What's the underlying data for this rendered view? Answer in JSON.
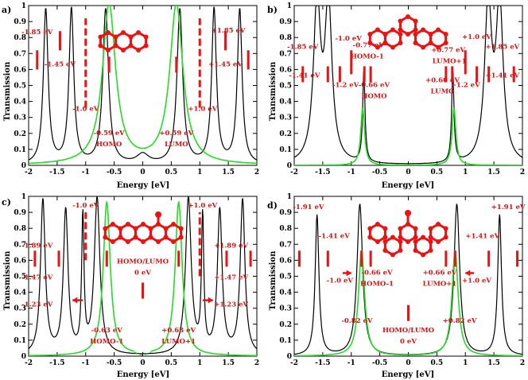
{
  "chart_data": [
    {
      "type": "line",
      "panel_label": "a)",
      "xlabel": "Energy [eV]",
      "ylabel": "Transmission",
      "xlim": [
        -2,
        2
      ],
      "ylim": [
        0,
        1
      ],
      "xticks": [
        "-2",
        "-1.5",
        "-1",
        "-0.5",
        "0",
        "0.5",
        "1",
        "1.5",
        "2"
      ],
      "yticks": [
        "0",
        "0.1",
        "0.2",
        "0.3",
        "0.4",
        "0.5",
        "0.6",
        "0.7",
        "0.8",
        "0.9",
        "1"
      ],
      "molecule": "linear-3-ring",
      "series": [
        {
          "name": "black",
          "color": "#000000",
          "peaks": [
            [
              -1.7,
              0.97,
              0.1
            ],
            [
              -1.25,
              0.97,
              0.1
            ],
            [
              -0.65,
              0.97,
              0.12
            ],
            [
              0.65,
              0.97,
              0.12
            ],
            [
              1.25,
              0.97,
              0.1
            ],
            [
              1.7,
              0.97,
              0.1
            ]
          ],
          "base": [
            [
              0,
              0.06,
              0.25
            ]
          ]
        },
        {
          "name": "green",
          "color": "#22dd22",
          "peaks": [
            [
              -0.59,
              1.0,
              0.28
            ],
            [
              0.59,
              1.0,
              0.28
            ]
          ]
        }
      ],
      "annotations": [
        {
          "text": "-1.85 eV",
          "x": -1.85,
          "y": 0.82
        },
        {
          "text": "-1.45 eV",
          "x": -1.45,
          "y": 0.62
        },
        {
          "text": "-1.0 eV",
          "x": -1.0,
          "y": 0.34
        },
        {
          "text": "-0.59 eV",
          "x": -0.59,
          "y": 0.19
        },
        {
          "text": "HOMO",
          "x": -0.59,
          "y": 0.12
        },
        {
          "text": "+0.59 eV",
          "x": 0.59,
          "y": 0.19
        },
        {
          "text": "LUMO",
          "x": 0.59,
          "y": 0.12
        },
        {
          "text": "+1.0 eV",
          "x": 1.05,
          "y": 0.34
        },
        {
          "text": "+1.45 eV",
          "x": 1.45,
          "y": 0.62
        },
        {
          "text": "+1.85 eV",
          "x": 1.5,
          "y": 0.83
        }
      ],
      "markers": [
        {
          "x": -1.85,
          "y1": 0.6,
          "y2": 0.72,
          "dashed": false
        },
        {
          "x": -1.45,
          "y1": 0.72,
          "y2": 0.84,
          "dashed": false
        },
        {
          "x": -1.0,
          "y1": 0.36,
          "y2": 0.92,
          "dashed": true
        },
        {
          "x": -0.59,
          "y1": 0.58,
          "y2": 0.68,
          "dashed": false
        },
        {
          "x": 0.59,
          "y1": 0.58,
          "y2": 0.68,
          "dashed": false
        },
        {
          "x": 1.0,
          "y1": 0.36,
          "y2": 0.92,
          "dashed": true
        },
        {
          "x": 1.45,
          "y1": 0.72,
          "y2": 0.84,
          "dashed": false
        },
        {
          "x": 1.85,
          "y1": 0.6,
          "y2": 0.72,
          "dashed": false
        }
      ]
    },
    {
      "type": "line",
      "panel_label": "b)",
      "xlabel": "Energy [eV]",
      "ylabel": "Transmission",
      "xlim": [
        -2,
        2
      ],
      "ylim": [
        0,
        1
      ],
      "xticks": [
        "-2",
        "-1.5",
        "-1",
        "-0.5",
        "0",
        "0.5",
        "1",
        "1.5",
        "2"
      ],
      "yticks": [
        "0",
        "0.1",
        "0.2",
        "0.3",
        "0.4",
        "0.5",
        "0.6",
        "0.7",
        "0.8",
        "0.9",
        "1"
      ],
      "molecule": "meta-3-ring",
      "series": [
        {
          "name": "black",
          "color": "#000000",
          "peaks": [
            [
              -1.6,
              0.98,
              0.15
            ],
            [
              -1.4,
              0.98,
              0.15
            ],
            [
              -0.78,
              0.57,
              0.05
            ],
            [
              0.78,
              0.57,
              0.05
            ],
            [
              1.4,
              0.98,
              0.15
            ],
            [
              1.6,
              0.98,
              0.15
            ]
          ]
        },
        {
          "name": "green",
          "color": "#22dd22",
          "peaks": [
            [
              -0.8,
              0.36,
              0.08
            ],
            [
              0.8,
              0.36,
              0.08
            ]
          ]
        }
      ],
      "annotations": [
        {
          "text": "-1.85 eV",
          "x": -1.85,
          "y": 0.73
        },
        {
          "text": "-1.41 eV",
          "x": -1.82,
          "y": 0.55
        },
        {
          "text": "-1.0 eV",
          "x": -1.05,
          "y": 0.78
        },
        {
          "text": "-0.77 eV",
          "x": -0.7,
          "y": 0.74
        },
        {
          "text": "HOMO-1",
          "x": -0.72,
          "y": 0.67
        },
        {
          "text": "-1.2 eV",
          "x": -1.1,
          "y": 0.49
        },
        {
          "text": "-0.66 eV",
          "x": -0.6,
          "y": 0.49
        },
        {
          "text": "HOMO",
          "x": -0.6,
          "y": 0.42
        },
        {
          "text": "+1.0 eV",
          "x": 1.2,
          "y": 0.79
        },
        {
          "text": "+0.77 eV",
          "x": 0.7,
          "y": 0.71
        },
        {
          "text": "LUMO+1",
          "x": 0.72,
          "y": 0.64
        },
        {
          "text": "+1.85 eV",
          "x": 1.65,
          "y": 0.73
        },
        {
          "text": "+0.66 eV",
          "x": 0.6,
          "y": 0.52
        },
        {
          "text": "LUMO",
          "x": 0.6,
          "y": 0.45
        },
        {
          "text": "+1.2 eV",
          "x": 1.0,
          "y": 0.49
        },
        {
          "text": "+1.41 eV",
          "x": 1.65,
          "y": 0.55
        }
      ],
      "markers": [
        {
          "x": -1.85,
          "y1": 0.52,
          "y2": 0.62,
          "dashed": false
        },
        {
          "x": -1.41,
          "y1": 0.52,
          "y2": 0.62,
          "dashed": false
        },
        {
          "x": -1.2,
          "y1": 0.52,
          "y2": 0.62,
          "dashed": false
        },
        {
          "x": -1.0,
          "y1": 0.57,
          "y2": 0.72,
          "dashed": false
        },
        {
          "x": -0.77,
          "y1": 0.52,
          "y2": 0.62,
          "dashed": false
        },
        {
          "x": -0.66,
          "y1": 0.52,
          "y2": 0.62,
          "dashed": false
        },
        {
          "x": 0.66,
          "y1": 0.52,
          "y2": 0.62,
          "dashed": false
        },
        {
          "x": 0.77,
          "y1": 0.52,
          "y2": 0.62,
          "dashed": false
        },
        {
          "x": 1.0,
          "y1": 0.57,
          "y2": 0.72,
          "dashed": false
        },
        {
          "x": 1.2,
          "y1": 0.52,
          "y2": 0.62,
          "dashed": false
        },
        {
          "x": 1.41,
          "y1": 0.52,
          "y2": 0.62,
          "dashed": false
        },
        {
          "x": 1.85,
          "y1": 0.52,
          "y2": 0.62,
          "dashed": false
        }
      ]
    },
    {
      "type": "line",
      "panel_label": "c)",
      "xlabel": "Energy [eV]",
      "ylabel": "Transmission",
      "xlim": [
        -2,
        2
      ],
      "ylim": [
        0,
        1
      ],
      "xticks": [
        "-2",
        "-1.5",
        "-1",
        "-0.5",
        "0",
        "0.5",
        "1",
        "1.5",
        "2"
      ],
      "yticks": [
        "0",
        "0.1",
        "0.2",
        "0.3",
        "0.4",
        "0.5",
        "0.6",
        "0.7",
        "0.8",
        "0.9",
        "1"
      ],
      "molecule": "branched-3-ring",
      "series": [
        {
          "name": "black",
          "color": "#000000",
          "peaks": [
            [
              -1.75,
              0.97,
              0.1
            ],
            [
              -1.35,
              0.9,
              0.1
            ],
            [
              -1.05,
              0.84,
              0.05
            ],
            [
              -0.8,
              0.98,
              0.12
            ],
            [
              0.8,
              0.98,
              0.12
            ],
            [
              1.05,
              0.84,
              0.05
            ],
            [
              1.35,
              0.9,
              0.1
            ],
            [
              1.75,
              0.97,
              0.1
            ]
          ]
        },
        {
          "name": "green",
          "color": "#22dd22",
          "peaks": [
            [
              -0.63,
              0.96,
              0.15
            ],
            [
              0.63,
              0.96,
              0.15
            ]
          ],
          "dashed_segment": [
            -0.15,
            0.15
          ]
        }
      ],
      "annotations": [
        {
          "text": "-1.0 eV",
          "x": -1.0,
          "y": 0.93
        },
        {
          "text": "+1.0 eV",
          "x": 1.05,
          "y": 0.93
        },
        {
          "text": "-1.89 eV",
          "x": -1.85,
          "y": 0.68
        },
        {
          "text": "+1.89 eV",
          "x": 1.55,
          "y": 0.68
        },
        {
          "text": "HOMO/LUMO",
          "x": 0.0,
          "y": 0.58
        },
        {
          "text": "0 eV",
          "x": 0.0,
          "y": 0.51
        },
        {
          "text": "-1.47 eV",
          "x": -1.85,
          "y": 0.48
        },
        {
          "text": "+1.47 eV",
          "x": 1.55,
          "y": 0.48
        },
        {
          "text": "-1.23 eV",
          "x": -1.85,
          "y": 0.31
        },
        {
          "text": "+1.23 eV",
          "x": 1.55,
          "y": 0.31
        },
        {
          "text": "-0.63 eV",
          "x": -0.63,
          "y": 0.15
        },
        {
          "text": "HOMO-1",
          "x": -0.63,
          "y": 0.08
        },
        {
          "text": "+0.63 eV",
          "x": 0.63,
          "y": 0.15
        },
        {
          "text": "LUMO+1",
          "x": 0.63,
          "y": 0.08
        }
      ],
      "markers": [
        {
          "x": -1.0,
          "y1": 0.6,
          "y2": 0.9,
          "dashed": true
        },
        {
          "x": 1.0,
          "y1": 0.5,
          "y2": 0.9,
          "dashed": true
        },
        {
          "x": -1.89,
          "y1": 0.56,
          "y2": 0.66,
          "dashed": false
        },
        {
          "x": 1.89,
          "y1": 0.56,
          "y2": 0.66,
          "dashed": false
        },
        {
          "x": -1.47,
          "y1": 0.56,
          "y2": 0.66,
          "dashed": false
        },
        {
          "x": 1.47,
          "y1": 0.56,
          "y2": 0.66,
          "dashed": false
        },
        {
          "x": -0.63,
          "y1": 0.56,
          "y2": 0.66,
          "dashed": false
        },
        {
          "x": 0.63,
          "y1": 0.56,
          "y2": 0.66,
          "dashed": false
        },
        {
          "x": 0.0,
          "y1": 0.36,
          "y2": 0.46,
          "dashed": false
        }
      ],
      "arrows": [
        {
          "x1": -1.05,
          "x2": -1.23,
          "y": 0.35
        },
        {
          "x1": 1.05,
          "x2": 1.23,
          "y": 0.35
        }
      ]
    },
    {
      "type": "line",
      "panel_label": "d)",
      "xlabel": "Energy [eV]",
      "ylabel": "Transmission",
      "xlim": [
        -2,
        2
      ],
      "ylim": [
        0,
        1
      ],
      "xticks": [
        "-2",
        "-1.5",
        "-1",
        "-0.5",
        "0",
        "0.5",
        "1",
        "1.5",
        "2"
      ],
      "yticks": [
        "0",
        "0.1",
        "0.2",
        "0.3",
        "0.4",
        "0.5",
        "0.6",
        "0.7",
        "0.8",
        "0.9",
        "1"
      ],
      "molecule": "branched-meta-3-ring",
      "series": [
        {
          "name": "black",
          "color": "#000000",
          "peaks": [
            [
              -1.6,
              0.88,
              0.08
            ],
            [
              -0.85,
              0.95,
              0.12
            ],
            [
              0.85,
              0.95,
              0.12
            ],
            [
              1.6,
              0.88,
              0.08
            ]
          ]
        },
        {
          "name": "green",
          "color": "#22dd22",
          "peaks": [
            [
              -0.82,
              0.66,
              0.13
            ],
            [
              0.82,
              0.66,
              0.13
            ]
          ]
        }
      ],
      "annotations": [
        {
          "text": "-1.91 eV",
          "x": -1.75,
          "y": 0.92
        },
        {
          "text": "+1.91 eV",
          "x": 1.75,
          "y": 0.92
        },
        {
          "text": "-1.41 eV",
          "x": -1.3,
          "y": 0.74
        },
        {
          "text": "+1.41 eV",
          "x": 1.3,
          "y": 0.74
        },
        {
          "text": "-0.66 eV",
          "x": -0.55,
          "y": 0.51
        },
        {
          "text": "HOMO-1",
          "x": -0.55,
          "y": 0.44
        },
        {
          "text": "+0.66 eV",
          "x": 0.55,
          "y": 0.51
        },
        {
          "text": "LUMO+1",
          "x": 0.55,
          "y": 0.44
        },
        {
          "text": "-1.0 eV",
          "x": -1.2,
          "y": 0.46
        },
        {
          "text": "+1.0 eV",
          "x": 1.2,
          "y": 0.46
        },
        {
          "text": "-0.82 eV",
          "x": -0.9,
          "y": 0.21
        },
        {
          "text": "+0.82 eV",
          "x": 0.9,
          "y": 0.21
        },
        {
          "text": "HOMO/LUMO",
          "x": 0.0,
          "y": 0.15
        },
        {
          "text": "0 eV",
          "x": 0.0,
          "y": 0.08
        }
      ],
      "markers": [
        {
          "x": -1.91,
          "y1": 0.56,
          "y2": 0.66,
          "dashed": false
        },
        {
          "x": 1.91,
          "y1": 0.56,
          "y2": 0.66,
          "dashed": false
        },
        {
          "x": -1.41,
          "y1": 0.56,
          "y2": 0.66,
          "dashed": false
        },
        {
          "x": 1.41,
          "y1": 0.56,
          "y2": 0.66,
          "dashed": false
        },
        {
          "x": -0.82,
          "y1": 0.56,
          "y2": 0.66,
          "dashed": false
        },
        {
          "x": 0.82,
          "y1": 0.56,
          "y2": 0.66,
          "dashed": false
        },
        {
          "x": -0.66,
          "y1": 0.56,
          "y2": 0.66,
          "dashed": false
        },
        {
          "x": 0.66,
          "y1": 0.56,
          "y2": 0.66,
          "dashed": false
        },
        {
          "x": 0.0,
          "y1": 0.22,
          "y2": 0.32,
          "dashed": false
        }
      ],
      "arrows": [
        {
          "x1": -1.15,
          "x2": -1.0,
          "y": 0.52
        },
        {
          "x1": 1.15,
          "x2": 1.0,
          "y": 0.52
        }
      ]
    }
  ]
}
